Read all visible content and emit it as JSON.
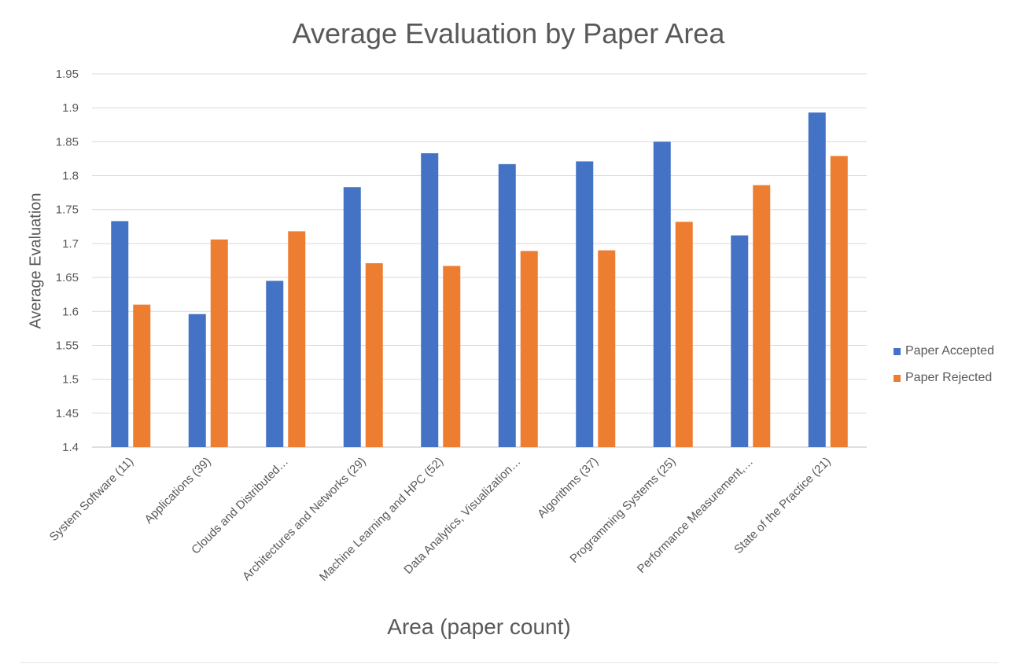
{
  "chart_data": {
    "type": "bar",
    "title": "Average Evaluation by Paper Area",
    "xlabel": "Area (paper count)",
    "ylabel": "Average Evaluation",
    "ylim": [
      1.4,
      1.95
    ],
    "ytick_step": 0.05,
    "yticks": [
      "1.4",
      "1.45",
      "1.5",
      "1.55",
      "1.6",
      "1.65",
      "1.7",
      "1.75",
      "1.8",
      "1.85",
      "1.9",
      "1.95"
    ],
    "grid": true,
    "legend_position": "right",
    "categories": [
      "System Software (11)",
      "Applications (39)",
      "Clouds and Distributed…",
      "Architectures and Networks (29)",
      "Machine Learning and HPC (52)",
      "Data Analytics, Visualization…",
      "Algorithms (37)",
      "Programming Systems (25)",
      "Performance Measurement,…",
      "State of the Practice (21)"
    ],
    "series": [
      {
        "name": "Paper Accepted",
        "color": "#4472c4",
        "values": [
          1.733,
          1.596,
          1.645,
          1.783,
          1.833,
          1.817,
          1.821,
          1.85,
          1.712,
          1.893
        ]
      },
      {
        "name": "Paper Rejected",
        "color": "#ed7d31",
        "values": [
          1.61,
          1.706,
          1.718,
          1.671,
          1.667,
          1.689,
          1.69,
          1.732,
          1.786,
          1.829
        ]
      }
    ]
  }
}
